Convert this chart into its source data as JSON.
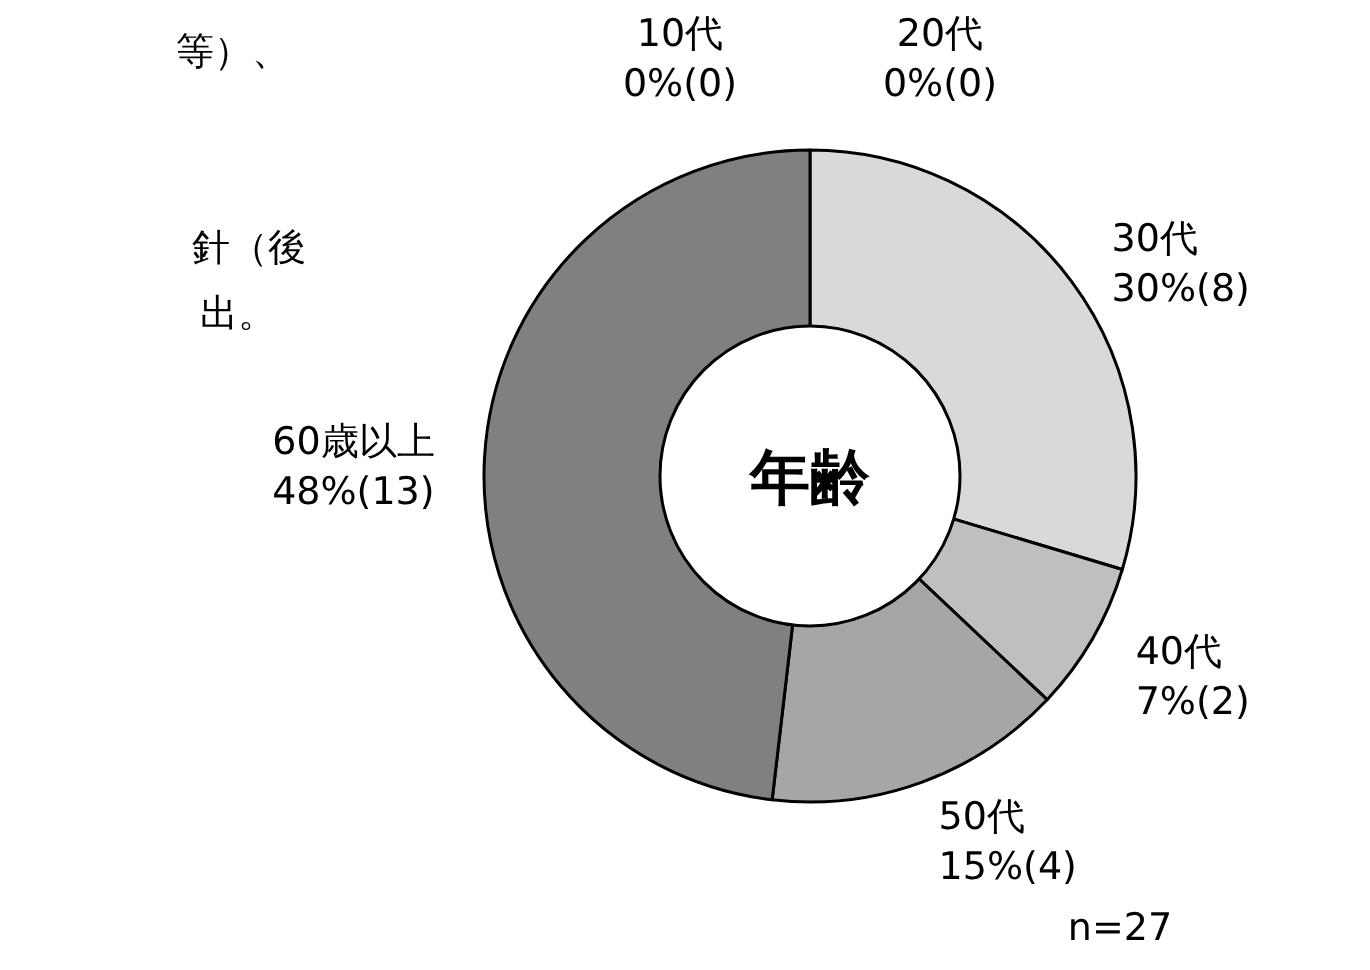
{
  "chart_data": {
    "type": "donut",
    "title": "年齢",
    "categories": [
      "10代",
      "20代",
      "30代",
      "40代",
      "50代",
      "60歳以上"
    ],
    "values": [
      0,
      0,
      8,
      2,
      4,
      13
    ],
    "value_labels": [
      "0%(0)",
      "0%(0)",
      "30%(8)",
      "7%(2)",
      "15%(4)",
      "48%(13)"
    ],
    "colors": [
      "#ffffff",
      "#ffffff",
      "#d9d9d9",
      "#bfbfbf",
      "#a6a6a6",
      "#808080"
    ],
    "annotations": [
      "n=27",
      "等）、",
      "針（後",
      "出。"
    ]
  }
}
